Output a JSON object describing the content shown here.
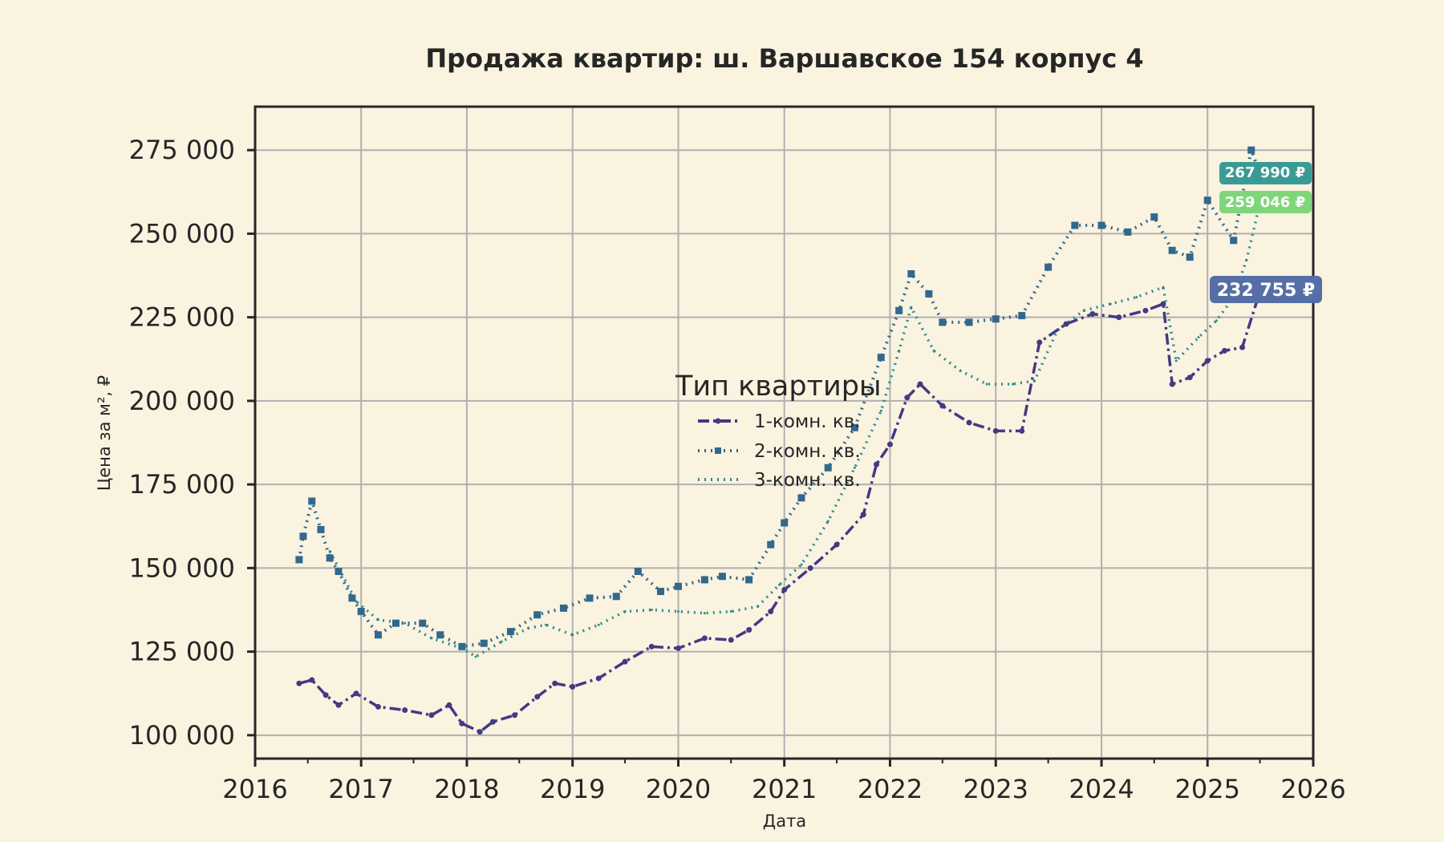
{
  "chart_data": {
    "type": "line",
    "title": "Продажа квартир: ш. Варшавское 154 корпус 4",
    "xlabel": "Дата",
    "ylabel": "Цена за м², ₽",
    "xlim": [
      "2016-01-01",
      "2026-01-01"
    ],
    "ylim": [
      93000,
      288000
    ],
    "x_ticks": [
      "2016",
      "2017",
      "2018",
      "2019",
      "2020",
      "2021",
      "2022",
      "2023",
      "2024",
      "2025",
      "2026"
    ],
    "y_ticks": [
      "100 000",
      "125 000",
      "150 000",
      "175 000",
      "200 000",
      "225 000",
      "250 000",
      "275 000"
    ],
    "grid": true,
    "legend": {
      "title": "Тип квартиры",
      "placement": "center"
    },
    "series": [
      {
        "name": "1-комн. кв.",
        "color": "#443983",
        "style": "dashdot",
        "marker": "small-circle",
        "points": [
          [
            "2016-06-01",
            115500
          ],
          [
            "2016-07-15",
            116500
          ],
          [
            "2016-09-01",
            112000
          ],
          [
            "2016-10-15",
            109000
          ],
          [
            "2016-12-15",
            112500
          ],
          [
            "2017-03-01",
            108500
          ],
          [
            "2017-06-01",
            107500
          ],
          [
            "2017-09-01",
            106000
          ],
          [
            "2017-11-01",
            109000
          ],
          [
            "2017-12-15",
            103500
          ],
          [
            "2018-02-15",
            101000
          ],
          [
            "2018-04-01",
            104000
          ],
          [
            "2018-06-15",
            106000
          ],
          [
            "2018-09-01",
            111500
          ],
          [
            "2018-11-01",
            115500
          ],
          [
            "2019-01-01",
            114500
          ],
          [
            "2019-04-01",
            117000
          ],
          [
            "2019-07-01",
            122000
          ],
          [
            "2019-10-01",
            126500
          ],
          [
            "2020-01-01",
            126000
          ],
          [
            "2020-04-01",
            129000
          ],
          [
            "2020-07-01",
            128500
          ],
          [
            "2020-09-01",
            131500
          ],
          [
            "2020-11-15",
            137000
          ],
          [
            "2021-01-01",
            143500
          ],
          [
            "2021-04-01",
            150000
          ],
          [
            "2021-07-01",
            157000
          ],
          [
            "2021-10-01",
            166000
          ],
          [
            "2021-11-15",
            181000
          ],
          [
            "2022-01-01",
            187000
          ],
          [
            "2022-03-01",
            201000
          ],
          [
            "2022-04-15",
            205000
          ],
          [
            "2022-07-01",
            198500
          ],
          [
            "2022-10-01",
            193500
          ],
          [
            "2023-01-01",
            191000
          ],
          [
            "2023-04-01",
            191000
          ],
          [
            "2023-06-01",
            217500
          ],
          [
            "2023-09-01",
            223000
          ],
          [
            "2023-12-01",
            226000
          ],
          [
            "2024-03-01",
            225000
          ],
          [
            "2024-06-01",
            227000
          ],
          [
            "2024-08-01",
            229000
          ],
          [
            "2024-09-01",
            205000
          ],
          [
            "2024-11-01",
            207000
          ],
          [
            "2025-01-01",
            212000
          ],
          [
            "2025-03-01",
            215000
          ],
          [
            "2025-05-01",
            216000
          ],
          [
            "2025-07-01",
            232755
          ]
        ]
      },
      {
        "name": "2-комн. кв.",
        "color": "#31688e",
        "style": "dotted",
        "marker": "square",
        "points": [
          [
            "2016-06-01",
            152500
          ],
          [
            "2016-06-15",
            159500
          ],
          [
            "2016-07-15",
            170000
          ],
          [
            "2016-08-15",
            161500
          ],
          [
            "2016-09-15",
            153000
          ],
          [
            "2016-10-15",
            149000
          ],
          [
            "2016-12-01",
            141000
          ],
          [
            "2017-01-01",
            137000
          ],
          [
            "2017-03-01",
            130000
          ],
          [
            "2017-05-01",
            133500
          ],
          [
            "2017-08-01",
            133500
          ],
          [
            "2017-10-01",
            130000
          ],
          [
            "2017-12-15",
            126500
          ],
          [
            "2018-03-01",
            127500
          ],
          [
            "2018-06-01",
            131000
          ],
          [
            "2018-09-01",
            136000
          ],
          [
            "2018-12-01",
            138000
          ],
          [
            "2019-03-01",
            141000
          ],
          [
            "2019-06-01",
            141500
          ],
          [
            "2019-08-15",
            149000
          ],
          [
            "2019-11-01",
            143000
          ],
          [
            "2020-01-01",
            144500
          ],
          [
            "2020-04-01",
            146500
          ],
          [
            "2020-06-01",
            147500
          ],
          [
            "2020-09-01",
            146500
          ],
          [
            "2020-11-15",
            157000
          ],
          [
            "2021-01-01",
            163500
          ],
          [
            "2021-03-01",
            171000
          ],
          [
            "2021-06-01",
            180000
          ],
          [
            "2021-09-01",
            192000
          ],
          [
            "2021-12-01",
            213000
          ],
          [
            "2022-02-01",
            227000
          ],
          [
            "2022-03-15",
            238000
          ],
          [
            "2022-05-15",
            232000
          ],
          [
            "2022-07-01",
            223500
          ],
          [
            "2022-10-01",
            223500
          ],
          [
            "2023-01-01",
            224500
          ],
          [
            "2023-04-01",
            225500
          ],
          [
            "2023-07-01",
            240000
          ],
          [
            "2023-10-01",
            252500
          ],
          [
            "2024-01-01",
            252500
          ],
          [
            "2024-04-01",
            250500
          ],
          [
            "2024-07-01",
            255000
          ],
          [
            "2024-09-01",
            245000
          ],
          [
            "2024-11-01",
            243000
          ],
          [
            "2025-01-01",
            260000
          ],
          [
            "2025-04-01",
            248000
          ],
          [
            "2025-06-01",
            275000
          ],
          [
            "2025-07-01",
            267990
          ]
        ]
      },
      {
        "name": "3-комн. кв.",
        "color": "#2a8c8c",
        "style": "dotted",
        "marker": "none",
        "points": [
          [
            "2016-09-15",
            155000
          ],
          [
            "2016-12-15",
            140000
          ],
          [
            "2017-03-01",
            134500
          ],
          [
            "2017-06-01",
            133500
          ],
          [
            "2017-09-01",
            129000
          ],
          [
            "2017-12-15",
            126000
          ],
          [
            "2018-02-01",
            123500
          ],
          [
            "2018-05-01",
            128000
          ],
          [
            "2018-08-01",
            132000
          ],
          [
            "2018-10-01",
            133000
          ],
          [
            "2019-01-01",
            130000
          ],
          [
            "2019-04-01",
            133000
          ],
          [
            "2019-07-01",
            137000
          ],
          [
            "2019-10-01",
            137500
          ],
          [
            "2020-01-01",
            137000
          ],
          [
            "2020-04-01",
            136500
          ],
          [
            "2020-07-01",
            137000
          ],
          [
            "2020-10-01",
            138500
          ],
          [
            "2020-12-15",
            145000
          ],
          [
            "2021-03-01",
            151000
          ],
          [
            "2021-06-01",
            164000
          ],
          [
            "2021-09-01",
            180000
          ],
          [
            "2021-12-01",
            197000
          ],
          [
            "2022-02-01",
            215000
          ],
          [
            "2022-03-15",
            228000
          ],
          [
            "2022-06-01",
            215000
          ],
          [
            "2022-09-01",
            209000
          ],
          [
            "2022-12-01",
            205000
          ],
          [
            "2023-03-01",
            205000
          ],
          [
            "2023-05-15",
            206000
          ],
          [
            "2023-08-01",
            221000
          ],
          [
            "2023-11-01",
            227000
          ],
          [
            "2024-02-01",
            229000
          ],
          [
            "2024-05-01",
            231000
          ],
          [
            "2024-08-01",
            234000
          ],
          [
            "2024-09-15",
            212000
          ],
          [
            "2024-12-01",
            219000
          ],
          [
            "2025-02-01",
            224000
          ],
          [
            "2025-04-01",
            231000
          ],
          [
            "2025-05-15",
            242000
          ],
          [
            "2025-07-01",
            259046
          ]
        ]
      }
    ],
    "last_value_labels": [
      {
        "text": "267 990 ₽",
        "color": "#3a9b94"
      },
      {
        "text": "259 046 ₽",
        "color": "#7fd67a"
      },
      {
        "text": "232 755 ₽",
        "color": "#556ea5"
      }
    ]
  }
}
